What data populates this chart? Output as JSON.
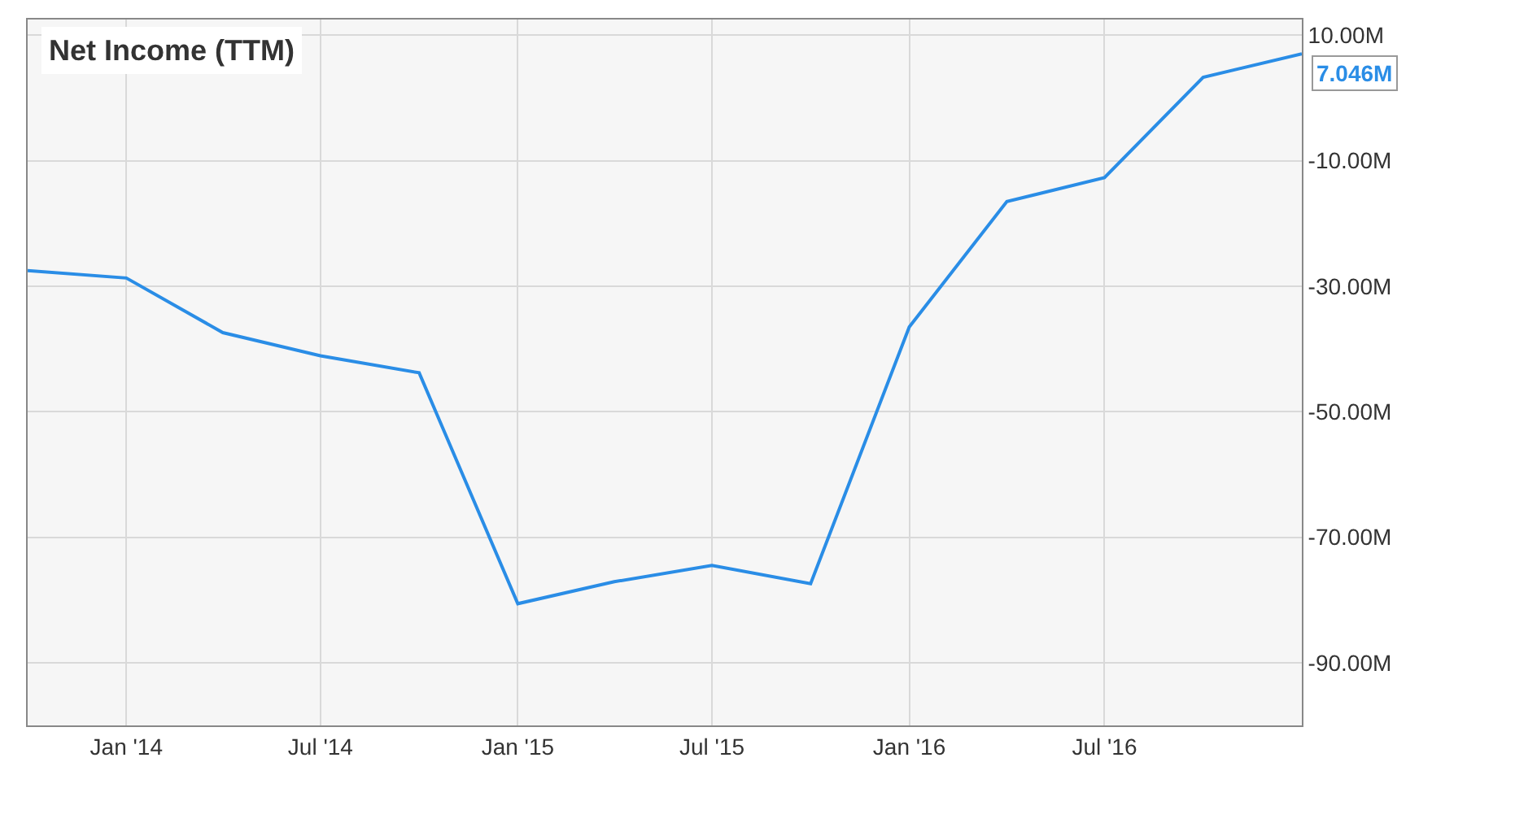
{
  "chart_data": {
    "type": "line",
    "title": "Net Income (TTM)",
    "x": [
      "2013-10-01",
      "2014-01-01",
      "2014-04-01",
      "2014-07-01",
      "2014-10-01",
      "2015-01-01",
      "2015-04-01",
      "2015-07-01",
      "2015-10-01",
      "2016-01-01",
      "2016-04-01",
      "2016-07-01",
      "2016-10-01",
      "2017-01-01"
    ],
    "series": [
      {
        "color": "#2a8de6",
        "values": [
          -27.5,
          -28.7,
          -37.4,
          -41.1,
          -43.8,
          -80.6,
          -77.1,
          -74.5,
          -77.4,
          -36.5,
          -16.5,
          -12.7,
          3.3,
          7.046
        ],
        "value_labels": [
          null,
          null,
          null,
          null,
          null,
          null,
          null,
          null,
          null,
          null,
          null,
          null,
          null,
          "7.046M"
        ]
      }
    ],
    "xlim": [
      "2013-10-01",
      "2017-01-01"
    ],
    "xticks": [
      {
        "value": "2014-01-01",
        "label": "Jan '14"
      },
      {
        "value": "2014-07-01",
        "label": "Jul '14"
      },
      {
        "value": "2015-01-01",
        "label": "Jan '15"
      },
      {
        "value": "2015-07-01",
        "label": "Jul '15"
      },
      {
        "value": "2016-01-01",
        "label": "Jan '16"
      },
      {
        "value": "2016-07-01",
        "label": "Jul '16"
      }
    ],
    "ylim": [
      -100,
      12.5
    ],
    "yticks": [
      {
        "value": 10,
        "label": "10.00M"
      },
      {
        "value": -10,
        "label": "-10.00M"
      },
      {
        "value": -30,
        "label": "-30.00M"
      },
      {
        "value": -50,
        "label": "-50.00M"
      },
      {
        "value": -70,
        "label": "-70.00M"
      },
      {
        "value": -90,
        "label": "-90.00M"
      }
    ],
    "grid": true,
    "marker": "none",
    "line_style": "solid"
  }
}
